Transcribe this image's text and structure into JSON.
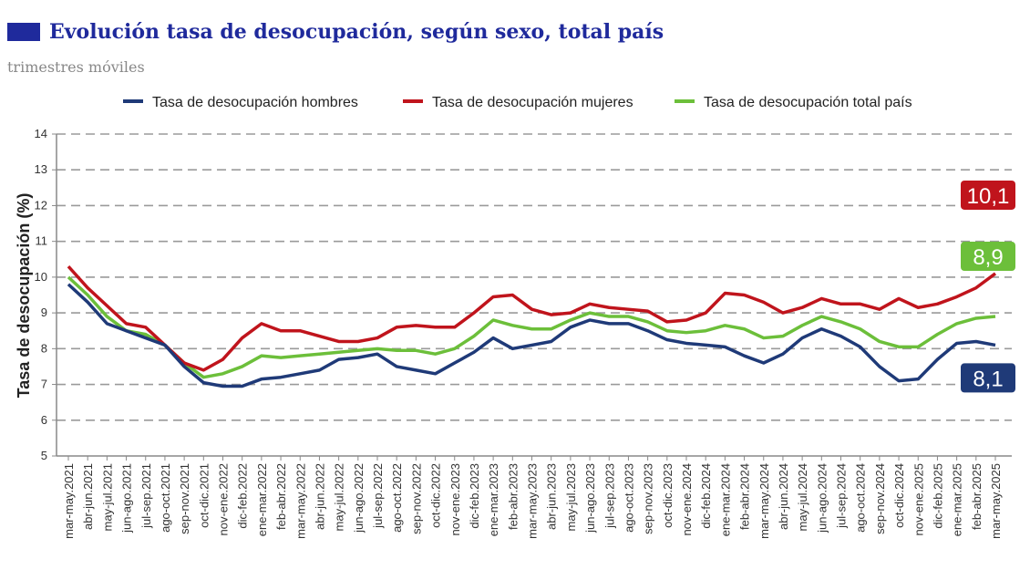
{
  "header": {
    "title": "Evolución tasa de desocupación, según sexo, total país",
    "subtitle": "trimestres móviles"
  },
  "chart_data": {
    "type": "line",
    "title": "Evolución tasa de desocupación, según sexo, total país",
    "subtitle": "trimestres móviles",
    "xlabel": "",
    "ylabel": "Tasa de desocupación (%)",
    "ylim": [
      5,
      14
    ],
    "yticks": [
      "5",
      "6",
      "7",
      "8",
      "9",
      "10",
      "11",
      "12",
      "13",
      "14"
    ],
    "grid": true,
    "legend_position": "top",
    "categories": [
      "mar-may.2021",
      "abr-jun.2021",
      "may-jul.2021",
      "jun-ago.2021",
      "jul-sep.2021",
      "ago-oct.2021",
      "sep-nov.2021",
      "oct-dic.2021",
      "nov-ene.2022",
      "dic-feb.2022",
      "ene-mar.2022",
      "feb-abr.2022",
      "mar-may.2022",
      "abr-jun.2022",
      "may-jul.2022",
      "jun-ago.2022",
      "jul-sep.2022",
      "ago-oct.2022",
      "sep-nov.2022",
      "oct-dic.2022",
      "nov-ene.2023",
      "dic-feb.2023",
      "ene-mar.2023",
      "feb-abr.2023",
      "mar-may.2023",
      "abr-jun.2023",
      "may-jul.2023",
      "jun-ago.2023",
      "jul-sep.2023",
      "ago-oct.2023",
      "sep-nov.2023",
      "oct-dic.2023",
      "nov-ene.2024",
      "dic-feb.2024",
      "ene-mar.2024",
      "feb-abr.2024",
      "mar-may.2024",
      "abr-jun.2024",
      "may-jul.2024",
      "jun-ago.2024",
      "jul-sep.2024",
      "ago-oct.2024",
      "sep-nov.2024",
      "oct-dic.2024",
      "nov-ene.2025",
      "dic-feb.2025",
      "ene-mar.2025",
      "feb-abr.2025",
      "mar-may.2025"
    ],
    "series": [
      {
        "name": "Tasa de desocupación hombres",
        "color": "#1f3a78",
        "end_label": "8,1",
        "values": [
          9.8,
          9.3,
          8.7,
          8.5,
          8.3,
          8.1,
          7.5,
          7.05,
          6.95,
          6.95,
          7.15,
          7.2,
          7.3,
          7.4,
          7.7,
          7.75,
          7.85,
          7.5,
          7.4,
          7.3,
          7.6,
          7.9,
          8.3,
          8.0,
          8.1,
          8.2,
          8.6,
          8.8,
          8.7,
          8.7,
          8.5,
          8.25,
          8.15,
          8.1,
          8.05,
          7.8,
          7.6,
          7.85,
          8.3,
          8.55,
          8.35,
          8.05,
          7.5,
          7.1,
          7.15,
          7.7,
          8.15,
          8.2,
          8.1
        ]
      },
      {
        "name": "Tasa de desocupación mujeres",
        "color": "#c0141c",
        "end_label": "10,1",
        "values": [
          10.3,
          9.7,
          9.2,
          8.7,
          8.6,
          8.1,
          7.6,
          7.4,
          7.7,
          8.3,
          8.7,
          8.5,
          8.5,
          8.35,
          8.2,
          8.2,
          8.3,
          8.6,
          8.65,
          8.6,
          8.6,
          9.0,
          9.45,
          9.5,
          9.1,
          8.95,
          9.0,
          9.25,
          9.15,
          9.1,
          9.05,
          8.75,
          8.8,
          9.0,
          9.55,
          9.5,
          9.3,
          9.0,
          9.15,
          9.4,
          9.25,
          9.25,
          9.1,
          9.4,
          9.15,
          9.25,
          9.45,
          9.7,
          10.1
        ]
      },
      {
        "name": "Tasa de desocupación total país",
        "color": "#6cbf3a",
        "end_label": "8,9",
        "values": [
          10.0,
          9.5,
          8.9,
          8.5,
          8.4,
          8.1,
          7.6,
          7.2,
          7.3,
          7.5,
          7.8,
          7.75,
          7.8,
          7.85,
          7.9,
          7.95,
          8.0,
          7.95,
          7.95,
          7.85,
          8.0,
          8.35,
          8.8,
          8.65,
          8.55,
          8.55,
          8.8,
          9.0,
          8.9,
          8.9,
          8.75,
          8.5,
          8.45,
          8.5,
          8.65,
          8.55,
          8.3,
          8.35,
          8.65,
          8.9,
          8.75,
          8.55,
          8.2,
          8.05,
          8.05,
          8.4,
          8.7,
          8.85,
          8.9
        ]
      }
    ]
  }
}
